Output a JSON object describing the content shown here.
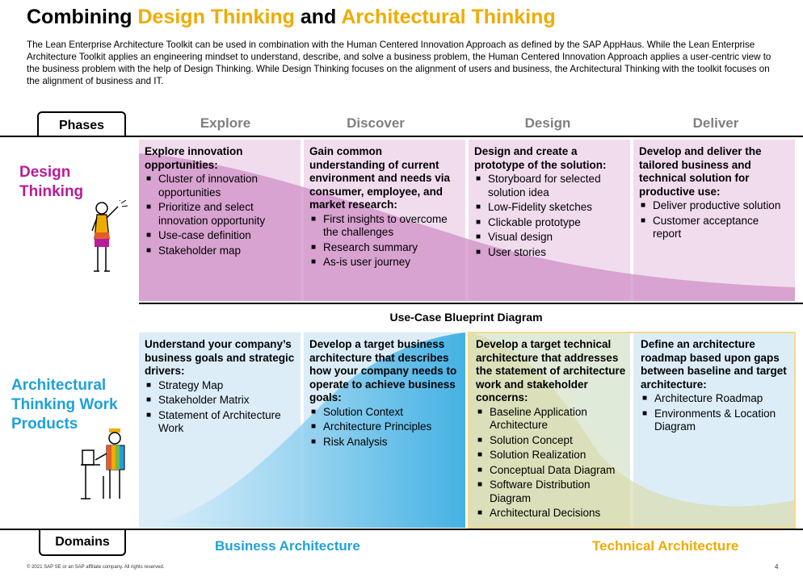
{
  "title": {
    "part1": "Combining ",
    "part2": "Design Thinking",
    "part3": " and ",
    "part4": "Architectural Thinking"
  },
  "intro": "The Lean Enterprise Architecture Toolkit can be used in combination with the Human Centered Innovation Approach as defined by the SAP AppHaus. While the Lean Enterprise Architecture Toolkit applies an engineering mindset to understand, describe, and solve a business problem, the Human Centered Innovation Approach applies a user-centric view to the business problem with the help of Design Thinking. While Design Thinking focuses on the alignment of users and business, the Architectural Thinking with the toolkit focuses on the alignment of business and IT.",
  "phases_label": "Phases",
  "phases": [
    "Explore",
    "Discover",
    "Design",
    "Deliver"
  ],
  "design_thinking": {
    "title_line1": "Design",
    "title_line2": "Thinking",
    "cells": [
      {
        "head": "Explore innovation opportunities:",
        "items": [
          "Cluster of innovation opportunities",
          "Prioritize and select innovation opportunity",
          "Use-case definition",
          "Stakeholder map"
        ]
      },
      {
        "head": "Gain common understanding of current environment and needs via consumer, employee, and market research:",
        "items": [
          "First insights to overcome the challenges",
          "Research summary",
          "As-is user journey"
        ]
      },
      {
        "head": "Design and create a prototype of the solution:",
        "items": [
          "Storyboard for selected solution idea",
          "Low-Fidelity sketches",
          "Clickable prototype",
          "Visual design",
          "User stories"
        ]
      },
      {
        "head": "Develop and deliver the tailored business and technical solution for productive use:",
        "items": [
          "Deliver productive solution",
          "Customer acceptance report"
        ]
      }
    ]
  },
  "blueprint_label": "Use-Case Blueprint Diagram",
  "architectural_thinking": {
    "title_line1": "Architectural",
    "title_line2": "Thinking Work",
    "title_line3": "Products",
    "cells": [
      {
        "head": "Understand your company’s business goals and strategic drivers:",
        "items": [
          "Strategy Map",
          "Stakeholder Matrix",
          "Statement of Architecture Work"
        ]
      },
      {
        "head": "Develop a target business architecture that describes how your company needs to operate to achieve business goals:",
        "items": [
          "Solution Context",
          "Architecture Principles",
          "Risk Analysis"
        ]
      },
      {
        "head": "Develop a target technical architecture that addresses the statement of architecture work and stakeholder concerns:",
        "items": [
          "Baseline Application Architecture",
          "Solution Concept",
          "Solution Realization",
          "Conceptual Data Diagram",
          "Software Distribution Diagram",
          "Architectural Decisions"
        ]
      },
      {
        "head": "Define an architecture roadmap based upon gaps between baseline and target architecture:",
        "items": [
          "Architecture Roadmap",
          "Environments & Location Diagram"
        ]
      }
    ]
  },
  "domains_label": "Domains",
  "domains": {
    "business": "Business Architecture",
    "technical": "Technical Architecture"
  },
  "footer": "© 2021 SAP SE or an SAP affiliate company. All rights reserved.",
  "page_number": "4",
  "colors": {
    "accent": "#f0ab00",
    "design_thinking": "#b61c9c",
    "architectural_thinking": "#1ea1db",
    "phase_label": "#7f7f7f",
    "technical": "#f0ab00",
    "business": "#1ea1db"
  }
}
